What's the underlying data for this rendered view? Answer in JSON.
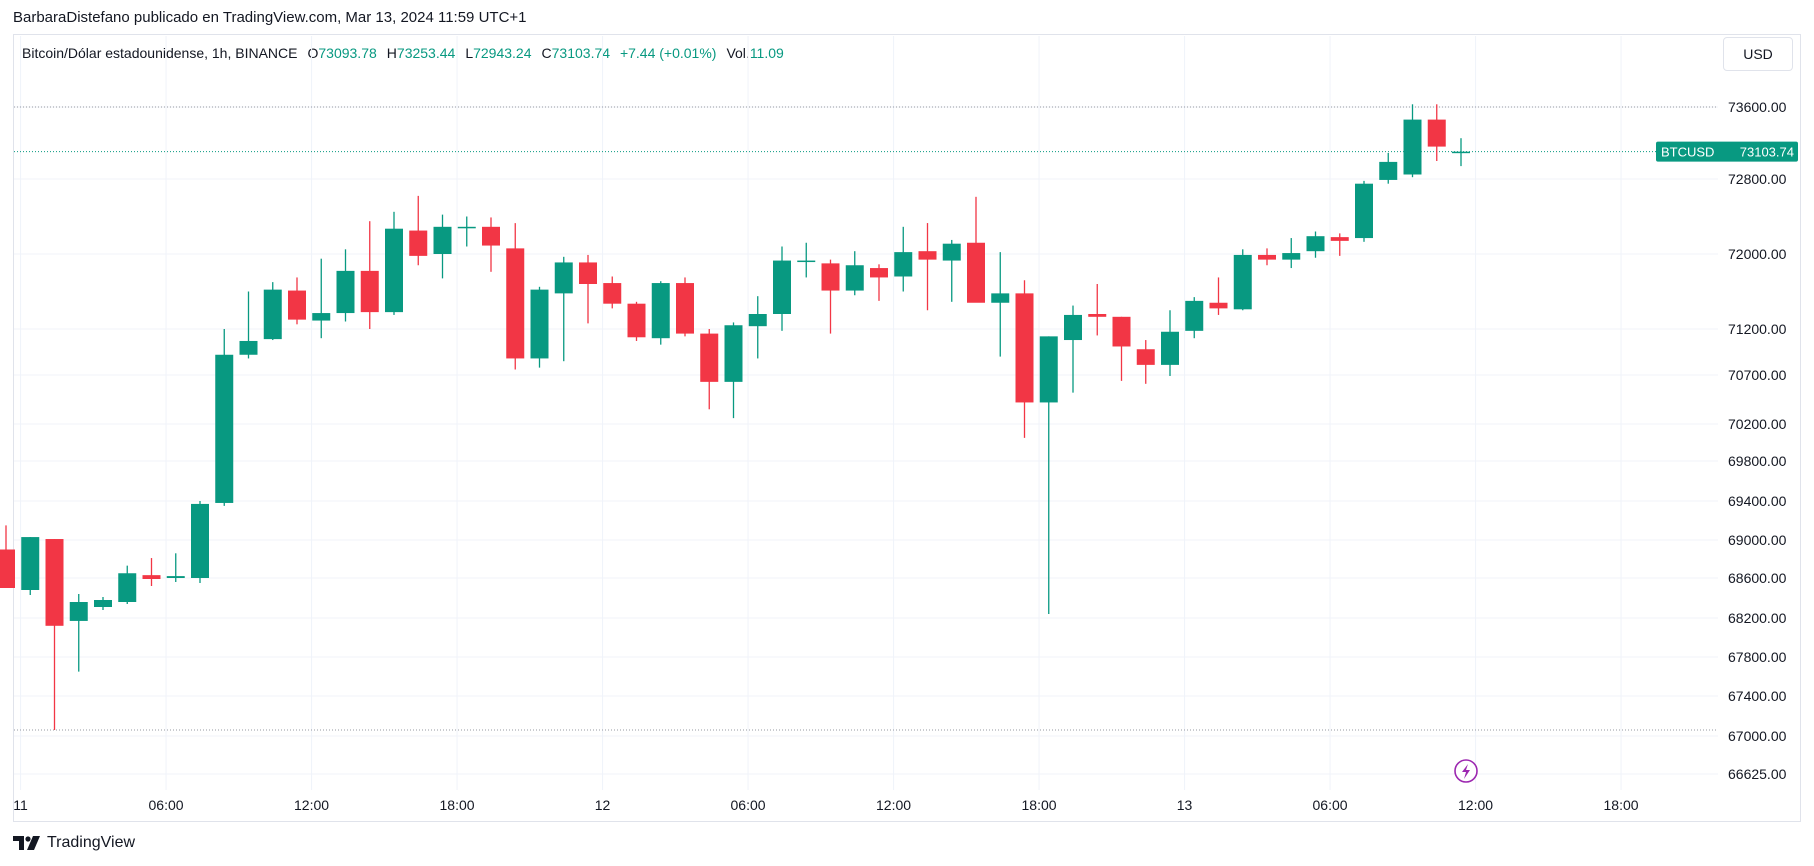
{
  "header": {
    "credit": "BarbaraDistefano publicado en TradingView.com, Mar 13, 2024 11:59 UTC+1"
  },
  "legend": {
    "symbol": "Bitcoin/Dólar estadounidense, 1h, BINANCE",
    "open_label": "O",
    "open": "73093.78",
    "high_label": "H",
    "high": "73253.44",
    "low_label": "L",
    "low": "72943.24",
    "close_label": "C",
    "close": "73103.74",
    "change": "+7.44 (+0.01%)",
    "volume_label": "Vol.",
    "volume": "11.09"
  },
  "toolbar": {
    "currency": "USD"
  },
  "brand": {
    "name": "TradingView"
  },
  "colors": {
    "up": "#089981",
    "down": "#f23645",
    "grid": "#f0f3fa",
    "axis_text": "#131722",
    "price_tag": "#089981"
  },
  "chart_data": {
    "type": "candlestick",
    "timeframe": "1h",
    "y_ticks": [
      73600,
      72800,
      72000,
      71200,
      70700,
      70200,
      69800,
      69400,
      69000,
      68600,
      68200,
      67800,
      67400,
      67000,
      66625
    ],
    "y_tick_labels": [
      "73600.00",
      "72800.00",
      "72000.00",
      "71200.00",
      "70700.00",
      "70200.00",
      "69800.00",
      "69400.00",
      "69000.00",
      "68600.00",
      "68200.00",
      "67800.00",
      "67400.00",
      "67000.00",
      "66625.00"
    ],
    "x_ticks": [
      {
        "i": 0.6,
        "label": "11"
      },
      {
        "i": 6.6,
        "label": "06:00"
      },
      {
        "i": 12.6,
        "label": "12:00"
      },
      {
        "i": 18.6,
        "label": "18:00"
      },
      {
        "i": 24.6,
        "label": "12"
      },
      {
        "i": 30.6,
        "label": "06:00"
      },
      {
        "i": 36.6,
        "label": "12:00"
      },
      {
        "i": 42.6,
        "label": "18:00"
      },
      {
        "i": 48.6,
        "label": "13"
      },
      {
        "i": 54.6,
        "label": "06:00"
      },
      {
        "i": 60.6,
        "label": "12:00"
      },
      {
        "i": 66.6,
        "label": "18:00"
      }
    ],
    "price_tag": {
      "symbol": "BTCUSD",
      "value": "73103.74",
      "price": 73103.74
    },
    "reference_lines": [
      73600,
      67060
    ],
    "candles": [
      {
        "o": 68900,
        "h": 69150,
        "l": 68500,
        "c": 68500
      },
      {
        "o": 68480,
        "h": 69030,
        "l": 68430,
        "c": 69030
      },
      {
        "o": 69010,
        "h": 69010,
        "l": 67060,
        "c": 68120
      },
      {
        "o": 68170,
        "h": 68440,
        "l": 67650,
        "c": 68360
      },
      {
        "o": 68310,
        "h": 68410,
        "l": 68280,
        "c": 68380
      },
      {
        "o": 68360,
        "h": 68730,
        "l": 68340,
        "c": 68650
      },
      {
        "o": 68630,
        "h": 68810,
        "l": 68520,
        "c": 68590
      },
      {
        "o": 68600,
        "h": 68860,
        "l": 68560,
        "c": 68620
      },
      {
        "o": 68600,
        "h": 69400,
        "l": 68550,
        "c": 69370
      },
      {
        "o": 69380,
        "h": 71200,
        "l": 69350,
        "c": 70920
      },
      {
        "o": 70920,
        "h": 71600,
        "l": 70880,
        "c": 71070
      },
      {
        "o": 71090,
        "h": 71700,
        "l": 71080,
        "c": 71620
      },
      {
        "o": 71610,
        "h": 71750,
        "l": 71250,
        "c": 71300
      },
      {
        "o": 71290,
        "h": 71950,
        "l": 71100,
        "c": 71370
      },
      {
        "o": 71370,
        "h": 72050,
        "l": 71280,
        "c": 71820
      },
      {
        "o": 71820,
        "h": 72350,
        "l": 71200,
        "c": 71380
      },
      {
        "o": 71380,
        "h": 72450,
        "l": 71350,
        "c": 72270
      },
      {
        "o": 72250,
        "h": 72620,
        "l": 71880,
        "c": 71980
      },
      {
        "o": 72000,
        "h": 72420,
        "l": 71740,
        "c": 72290
      },
      {
        "o": 72280,
        "h": 72400,
        "l": 72080,
        "c": 72290
      },
      {
        "o": 72290,
        "h": 72390,
        "l": 71810,
        "c": 72090
      },
      {
        "o": 72060,
        "h": 72330,
        "l": 70760,
        "c": 70880
      },
      {
        "o": 70880,
        "h": 71650,
        "l": 70780,
        "c": 71620
      },
      {
        "o": 71580,
        "h": 71970,
        "l": 70850,
        "c": 71910
      },
      {
        "o": 71910,
        "h": 71990,
        "l": 71260,
        "c": 71680
      },
      {
        "o": 71690,
        "h": 71760,
        "l": 71420,
        "c": 71470
      },
      {
        "o": 71470,
        "h": 71490,
        "l": 71070,
        "c": 71110
      },
      {
        "o": 71100,
        "h": 71710,
        "l": 71030,
        "c": 71690
      },
      {
        "o": 71690,
        "h": 71750,
        "l": 71120,
        "c": 71150
      },
      {
        "o": 71150,
        "h": 71200,
        "l": 70350,
        "c": 70630
      },
      {
        "o": 70630,
        "h": 71270,
        "l": 70260,
        "c": 71240
      },
      {
        "o": 71230,
        "h": 71550,
        "l": 70880,
        "c": 71360
      },
      {
        "o": 71360,
        "h": 72080,
        "l": 71180,
        "c": 71930
      },
      {
        "o": 71930,
        "h": 72120,
        "l": 71750,
        "c": 71930
      },
      {
        "o": 71900,
        "h": 71940,
        "l": 71150,
        "c": 71610
      },
      {
        "o": 71610,
        "h": 72030,
        "l": 71560,
        "c": 71880
      },
      {
        "o": 71850,
        "h": 71890,
        "l": 71500,
        "c": 71750
      },
      {
        "o": 71760,
        "h": 72290,
        "l": 71600,
        "c": 72020
      },
      {
        "o": 72030,
        "h": 72330,
        "l": 71400,
        "c": 71940
      },
      {
        "o": 71930,
        "h": 72150,
        "l": 71490,
        "c": 72110
      },
      {
        "o": 72120,
        "h": 72610,
        "l": 71490,
        "c": 71480
      },
      {
        "o": 71480,
        "h": 72020,
        "l": 70900,
        "c": 71580
      },
      {
        "o": 71580,
        "h": 71720,
        "l": 70050,
        "c": 70420
      },
      {
        "o": 70420,
        "h": 71120,
        "l": 68240,
        "c": 71120
      },
      {
        "o": 71080,
        "h": 71450,
        "l": 70520,
        "c": 71350
      },
      {
        "o": 71360,
        "h": 71680,
        "l": 71130,
        "c": 71330
      },
      {
        "o": 71330,
        "h": 71330,
        "l": 70640,
        "c": 71010
      },
      {
        "o": 70980,
        "h": 71080,
        "l": 70610,
        "c": 70810
      },
      {
        "o": 70810,
        "h": 71400,
        "l": 70690,
        "c": 71170
      },
      {
        "o": 71180,
        "h": 71540,
        "l": 71100,
        "c": 71500
      },
      {
        "o": 71480,
        "h": 71750,
        "l": 71350,
        "c": 71420
      },
      {
        "o": 71410,
        "h": 72050,
        "l": 71400,
        "c": 71990
      },
      {
        "o": 71990,
        "h": 72060,
        "l": 71880,
        "c": 71940
      },
      {
        "o": 71940,
        "h": 72170,
        "l": 71850,
        "c": 72010
      },
      {
        "o": 72030,
        "h": 72240,
        "l": 71960,
        "c": 72190
      },
      {
        "o": 72180,
        "h": 72220,
        "l": 71980,
        "c": 72140
      },
      {
        "o": 72170,
        "h": 72780,
        "l": 72130,
        "c": 72750
      },
      {
        "o": 72790,
        "h": 73090,
        "l": 72750,
        "c": 72990
      },
      {
        "o": 72850,
        "h": 73630,
        "l": 72820,
        "c": 73460
      },
      {
        "o": 73460,
        "h": 73630,
        "l": 73000,
        "c": 73160
      },
      {
        "o": 73093.78,
        "h": 73253.44,
        "l": 72943.24,
        "c": 73103.74
      }
    ]
  }
}
